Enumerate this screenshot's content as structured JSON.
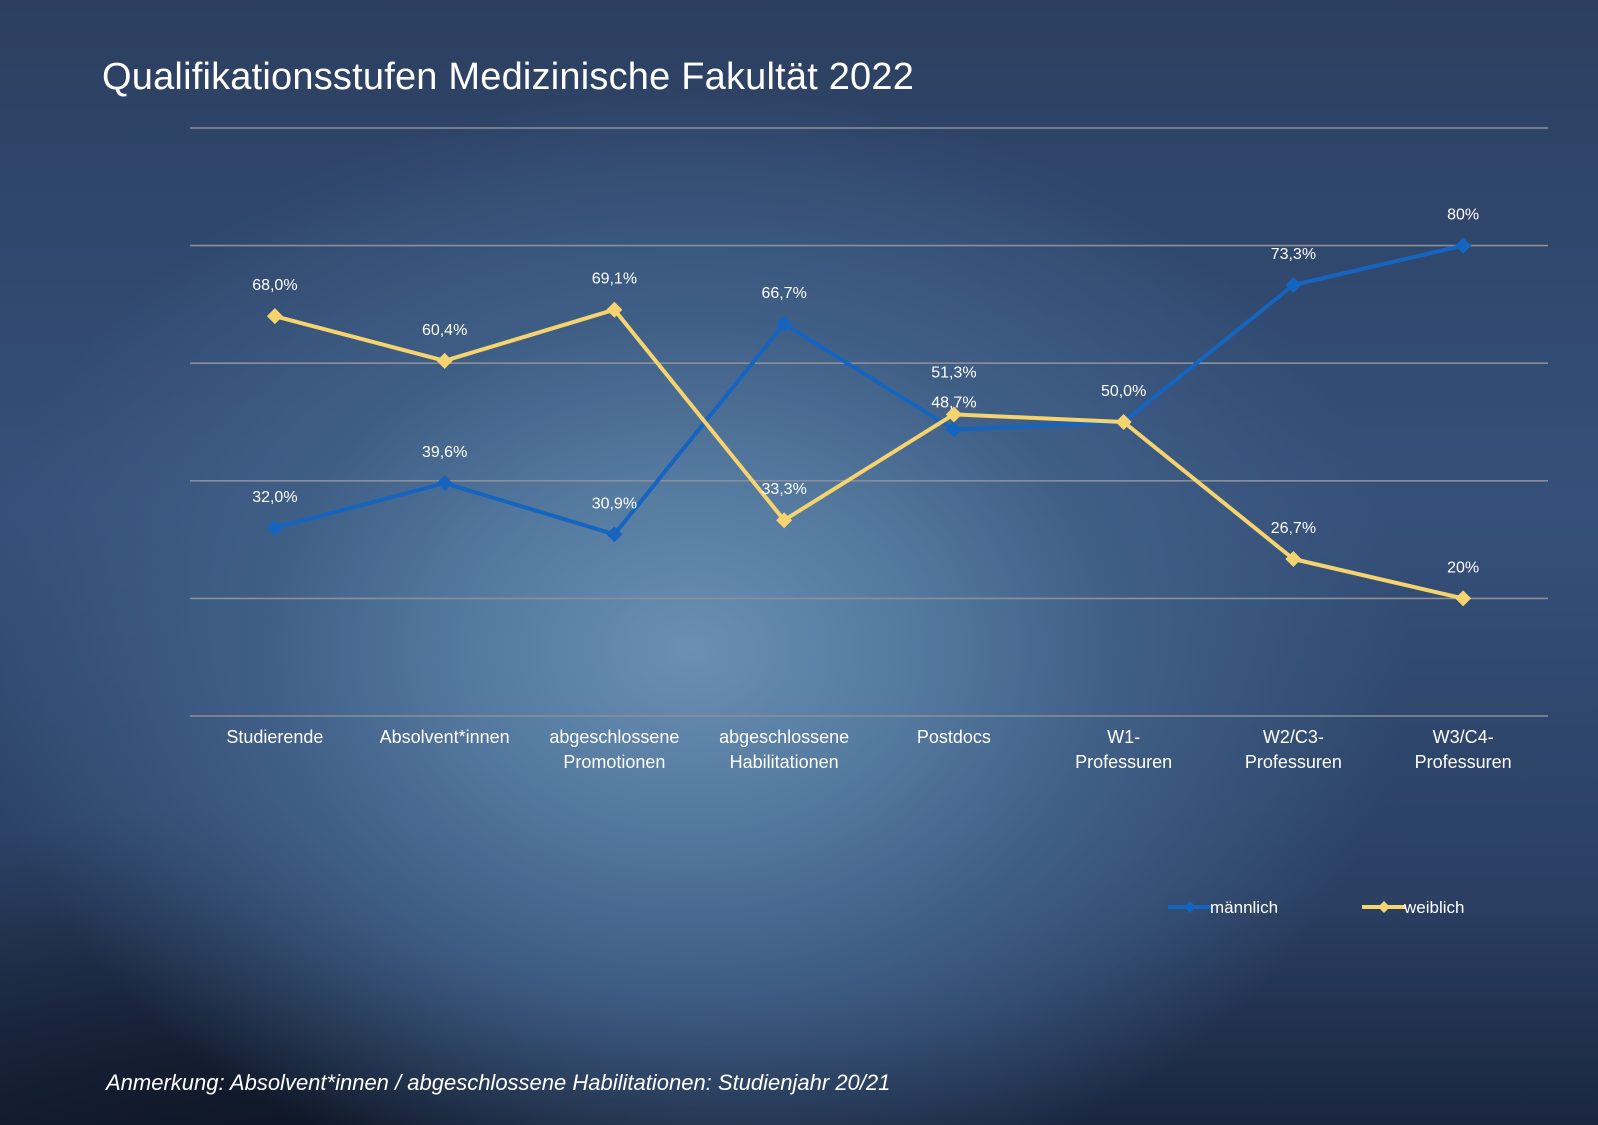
{
  "page": {
    "title": "Qualifikationsstufen Medizinische Fakultät 2022",
    "footnote": "Anmerkung: Absolvent*innen / abgeschlossene Habilitationen: Studienjahr 20/21"
  },
  "chart_data": {
    "type": "line",
    "title": "Qualifikationsstufen Medizinische Fakultät 2022",
    "categories": [
      [
        "Studierende"
      ],
      [
        "Absolvent*innen"
      ],
      [
        "abgeschlossene",
        "Promotionen"
      ],
      [
        "abgeschlossene",
        "Habilitationen"
      ],
      [
        "Postdocs"
      ],
      [
        "W1-",
        "Professuren"
      ],
      [
        "W2/C3-",
        "Professuren"
      ],
      [
        "W3/C4-",
        "Professuren"
      ]
    ],
    "series": [
      {
        "name": "männlich",
        "color": "#1565c0",
        "values": [
          32.0,
          39.6,
          30.9,
          66.7,
          48.7,
          50.0,
          73.3,
          80
        ],
        "labels": [
          "32,0%",
          "39,6%",
          "30,9%",
          "66,7%",
          "48,7%",
          "50,0%",
          "73,3%",
          "80%"
        ]
      },
      {
        "name": "weiblich",
        "color": "#f5d36e",
        "values": [
          68.0,
          60.4,
          69.1,
          33.3,
          51.3,
          50.0,
          26.7,
          20
        ],
        "labels": [
          "68,0%",
          "60,4%",
          "69,1%",
          "33,3%",
          "51,3%",
          "",
          "26,7%",
          "20%"
        ]
      }
    ],
    "ylim": [
      0,
      100
    ],
    "gridlines": [
      0,
      20,
      40,
      60,
      80,
      100
    ],
    "grid": true,
    "yaxis_labels_visible": false,
    "legend_position": "bottom-right"
  }
}
